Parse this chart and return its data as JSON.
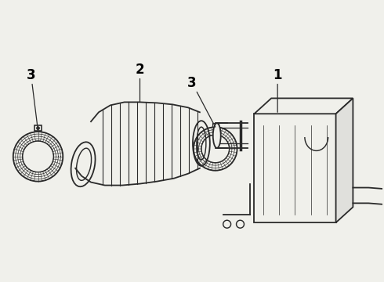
{
  "background_color": "#f0f0eb",
  "line_color": "#2a2a2a",
  "label_color": "#000000",
  "lw_main": 1.3,
  "lw_thin": 0.6,
  "label_fontsize": 12,
  "label_fontweight": "bold"
}
